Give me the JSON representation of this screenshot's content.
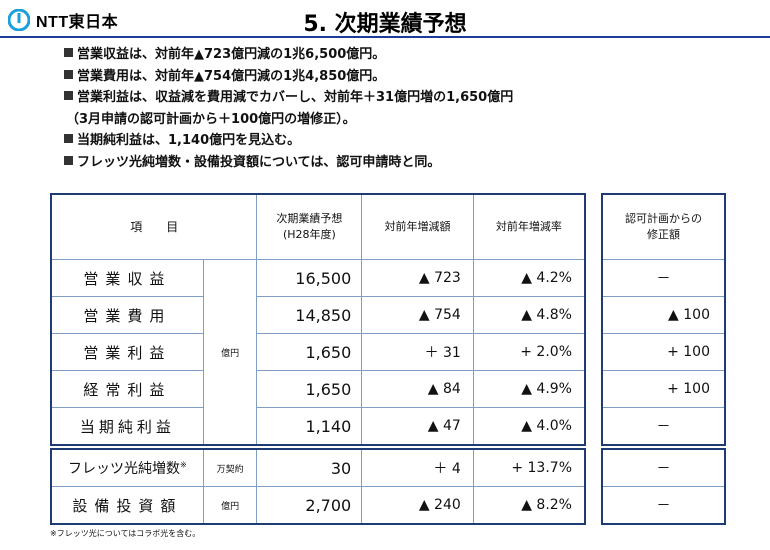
{
  "header": {
    "logo_text": "NTT東日本",
    "title": "5. 次期業績予想"
  },
  "bullets": [
    "営業収益は、対前年▲723億円減の1兆6,500億円。",
    "営業費用は、対前年▲754億円減の1兆4,850億円。",
    "営業利益は、収益減を費用減でカバーし、対前年＋31億円増の1,650億円",
    "当期純利益は、1,140億円を見込む。",
    "フレッツ光純増数・設備投資額については、認可申請時と同。"
  ],
  "bullet_continuation": "（3月申請の認可計画から＋100億円の増修正）。",
  "table": {
    "headers": {
      "item": "項　　目",
      "forecast_l1": "次期業績予想",
      "forecast_l2": "(H28年度)",
      "yoy_amount": "対前年増減額",
      "yoy_rate": "対前年増減率",
      "revision_l1": "認可計画からの",
      "revision_l2": "修正額"
    },
    "unit_oku": "億円",
    "unit_man": "万契約",
    "rows": [
      {
        "label": "営業収益",
        "forecast": "16,500",
        "amount": "▲ 723",
        "rate": "▲ 4.2%",
        "revision": "－"
      },
      {
        "label": "営業費用",
        "forecast": "14,850",
        "amount": "▲ 754",
        "rate": "▲ 4.8%",
        "revision": "▲ 100"
      },
      {
        "label": "営業利益",
        "forecast": "1,650",
        "amount": "＋ 31",
        "rate": "+ 2.0%",
        "revision": "+ 100"
      },
      {
        "label": "経常利益",
        "forecast": "1,650",
        "amount": "▲ 84",
        "rate": "▲ 4.9%",
        "revision": "+ 100"
      },
      {
        "label": "当期純利益",
        "forecast": "1,140",
        "amount": "▲ 47",
        "rate": "▲ 4.0%",
        "revision": "－"
      }
    ],
    "rows2": [
      {
        "label": "フレッツ光純増数",
        "mark": "※",
        "unit": "万契約",
        "forecast": "30",
        "amount": "＋ 4",
        "rate": "+ 13.7%",
        "revision": "－"
      },
      {
        "label": "設備投資額",
        "unit": "億円",
        "forecast": "2,700",
        "amount": "▲ 240",
        "rate": "▲ 8.2%",
        "revision": "－"
      }
    ]
  },
  "footnote": "※フレッツ光についてはコラボ光を含む。",
  "colors": {
    "accent": "#1a3d9c",
    "border": "#1f3b73",
    "grid": "#7f9ec6"
  }
}
